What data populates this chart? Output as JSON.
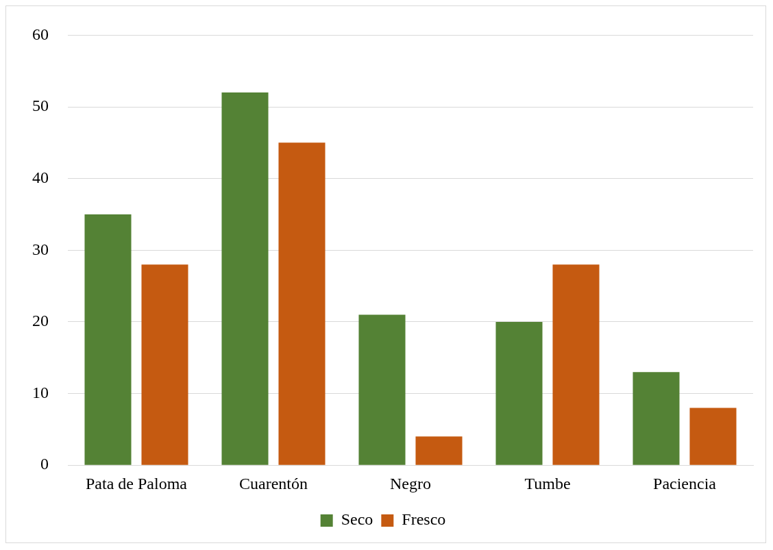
{
  "chart_data": {
    "type": "bar",
    "categories": [
      "Pata de Paloma",
      "Cuarentón",
      "Negro",
      "Tumbe",
      "Paciencia"
    ],
    "series": [
      {
        "name": "Seco",
        "color": "#548235",
        "values": [
          35,
          52,
          21,
          20,
          13
        ]
      },
      {
        "name": "Fresco",
        "color": "#c55a11",
        "values": [
          28,
          45,
          4,
          28,
          8
        ]
      }
    ],
    "ylim": [
      0,
      60
    ],
    "yticks": [
      0,
      10,
      20,
      30,
      40,
      50,
      60
    ],
    "grid": "y",
    "legend": "bottom"
  }
}
